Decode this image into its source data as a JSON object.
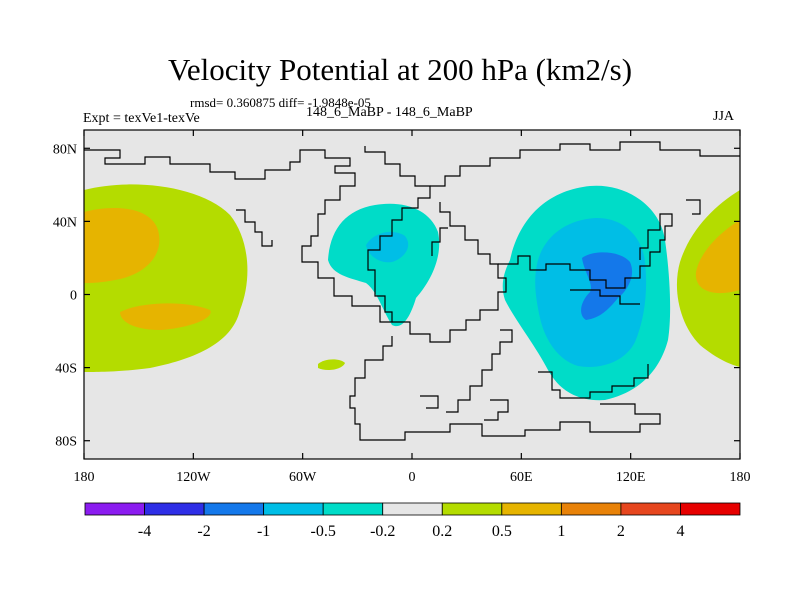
{
  "header": {
    "title": "Velocity Potential at 200 hPa (km2/s)",
    "stats": "rmsd= 0.360875 diff= -1.9848e-05",
    "experiment": "Expt = texVe1-texVe",
    "comparison": "148_6_MaBP - 148_6_MaBP",
    "season": "JJA"
  },
  "axes": {
    "x_ticks": [
      {
        "lon": -180,
        "label": "180"
      },
      {
        "lon": -120,
        "label": "120W"
      },
      {
        "lon": -60,
        "label": "60W"
      },
      {
        "lon": 0,
        "label": "0"
      },
      {
        "lon": 60,
        "label": "60E"
      },
      {
        "lon": 120,
        "label": "120E"
      },
      {
        "lon": 180,
        "label": "180"
      }
    ],
    "y_ticks": [
      {
        "lat": 80,
        "label": "80N"
      },
      {
        "lat": 40,
        "label": "40N"
      },
      {
        "lat": 0,
        "label": "0"
      },
      {
        "lat": -40,
        "label": "40S"
      },
      {
        "lat": -80,
        "label": "80S"
      }
    ],
    "lon_range": [
      -180,
      180
    ],
    "lat_range": [
      -90,
      90
    ]
  },
  "colorbar": {
    "labels": [
      "-4",
      "-2",
      "-1",
      "-0.5",
      "-0.2",
      "0.2",
      "0.5",
      "1",
      "2",
      "4"
    ],
    "colors": [
      "#8b1cf0",
      "#2e2ee6",
      "#1478ea",
      "#00bee6",
      "#00dcc8",
      "#e6e6e6",
      "#b4dc00",
      "#e6b400",
      "#e88208",
      "#e6461e",
      "#e60000"
    ]
  }
}
